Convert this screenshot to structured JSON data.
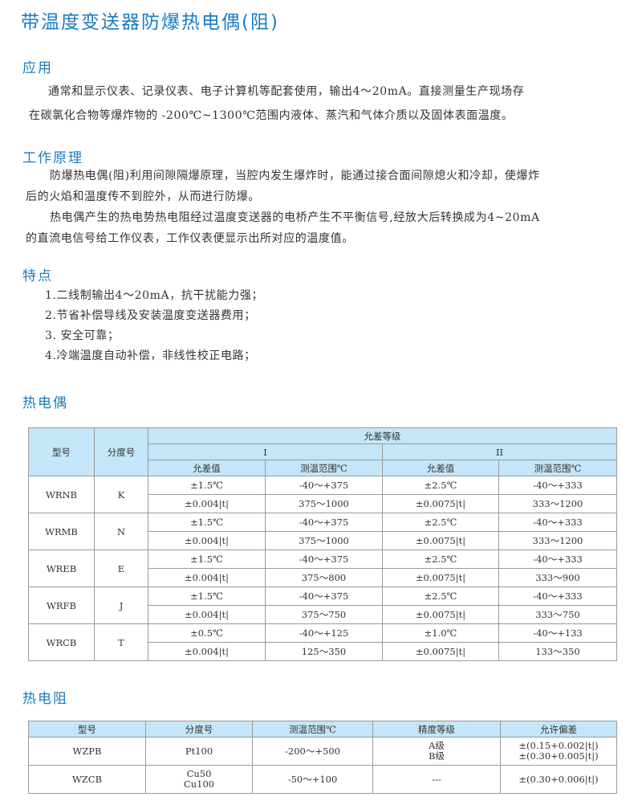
{
  "title": "带温度变送器防爆热电偶(阻)",
  "sections": {
    "application": {
      "heading": "应用",
      "lines": [
        "通常和显示仪表、记录仪表、电子计算机等配套使用，输出4～20mA。直接测量生产现场存",
        "在碳氯化合物等爆炸物的 -200℃~1300℃范围内液体、蒸汽和气体介质以及固体表面温度。"
      ]
    },
    "principle": {
      "heading": "工作原理",
      "lines": [
        "防爆热电偶(阻)利用间隙隔爆原理，当腔内发生爆炸时，能通过接合面间隙熄火和冷却，使爆炸",
        "后的火焰和温度传不到腔外，从而进行防爆。",
        "热电偶产生的热电势热电阻经过温度变送器的电桥产生不平衡信号,经放大后转换成为4~20mA",
        "的直流电信号给工作仪表，工作仪表便显示出所对应的温度值。"
      ]
    },
    "features": {
      "heading": "特点",
      "items": [
        "1.二线制输出4～20mA，抗干扰能力强；",
        "2.节省补偿导线及安装温度变送器费用；",
        "3. 安全可靠；",
        "4.冷端温度自动补偿，非线性校正电路；"
      ]
    }
  },
  "thermocouple": {
    "heading": "热电偶",
    "headers": {
      "model": "型号",
      "graduation": "分度号",
      "tolerance_class": "允差等级",
      "class1": "I",
      "class2": "II",
      "tolerance": "允差值",
      "range": "测温范围℃"
    },
    "rows": [
      {
        "model": "WRNB",
        "grad": "K",
        "r": [
          [
            "±1.5℃",
            "-40～+375",
            "±2.5℃",
            "-40～+333"
          ],
          [
            "±0.004|t|",
            "375～1000",
            "±0.0075|t|",
            "333～1200"
          ]
        ]
      },
      {
        "model": "WRMB",
        "grad": "N",
        "r": [
          [
            "±1.5℃",
            "-40～+375",
            "±2.5℃",
            "-40～+333"
          ],
          [
            "±0.004|t|",
            "375～1000",
            "±0.0075|t|",
            "333～1200"
          ]
        ]
      },
      {
        "model": "WREB",
        "grad": "E",
        "r": [
          [
            "±1.5℃",
            "-40～+375",
            "±2.5℃",
            "-40～+333"
          ],
          [
            "±0.004|t|",
            "375～800",
            "±0.0075|t|",
            "333～900"
          ]
        ]
      },
      {
        "model": "WRFB",
        "grad": "J",
        "r": [
          [
            "±1.5℃",
            "-40～+375",
            "±2.5℃",
            "-40～+333"
          ],
          [
            "±0.004|t|",
            "375～750",
            "±0.0075|t|",
            "333～750"
          ]
        ]
      },
      {
        "model": "WRCB",
        "grad": "T",
        "r": [
          [
            "±0.5℃",
            "-40～+125",
            "±1.0℃",
            "-40～+133"
          ],
          [
            "±0.004|t|",
            "125～350",
            "±0.0075|t|",
            "133～350"
          ]
        ]
      }
    ]
  },
  "rtd": {
    "heading": "热电阻",
    "headers": [
      "型号",
      "分度号",
      "测温范围℃",
      "精度等级",
      "允许偏差"
    ],
    "rows": [
      {
        "model": "WZPB",
        "grad": [
          "Pt100"
        ],
        "range": "-200～+500",
        "acc": [
          "A级",
          "B级"
        ],
        "dev": [
          "±(0.15+0.002|t|)",
          "±(0.30+0.005|t|)"
        ]
      },
      {
        "model": "WZCB",
        "grad": [
          "Cu50",
          "Cu100"
        ],
        "range": "-50～+100",
        "acc": [
          "---"
        ],
        "dev": [
          "±(0.30+0.006|t|)"
        ]
      }
    ]
  },
  "colors": {
    "heading": "#1a7cc1",
    "table_header": "#c4e6f8"
  }
}
